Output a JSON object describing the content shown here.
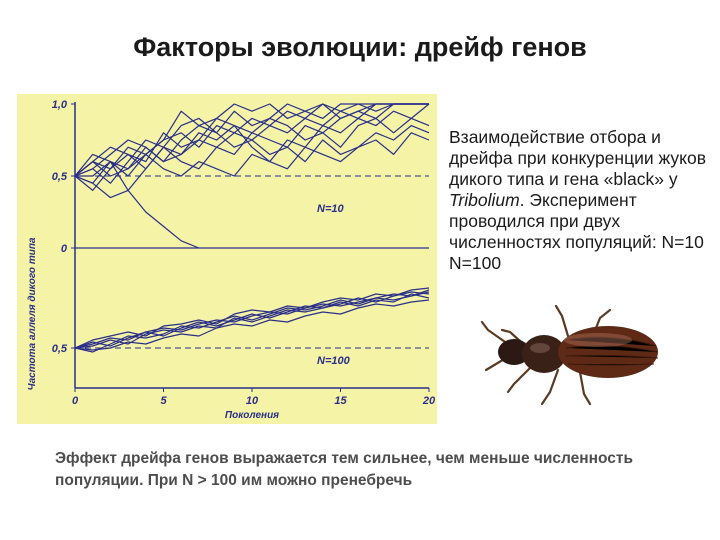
{
  "slide": {
    "title": "Факторы эволюции: дрейф генов",
    "description_before": "Взаимодействие отбора и дрейфа при конкуренции жуков дикого типа и гена «black» у ",
    "description_italic": "Tribolium",
    "description_after": ". Эксперимент проводился при двух численностях популяций: N=10 N=100",
    "footer": "Эффект дрейфа генов выражается тем сильнее, чем меньше численность популяции. При N > 100 им можно пренебречь"
  },
  "colors": {
    "chart_bg": "#f4f3a6",
    "line": "#2a2f8a",
    "beetle": "#4a1f12"
  },
  "chart_data": {
    "type": "line",
    "xlabel": "Поколения",
    "ylabel": "Частота аллеля дикого типа",
    "x_ticks": [
      "0",
      "5",
      "10",
      "15",
      "20"
    ],
    "xlim": [
      0,
      20
    ],
    "panels": [
      {
        "label": "N=10",
        "y_ticks": [
          "1,0",
          "0,5",
          "0"
        ],
        "ylim": [
          0,
          1
        ],
        "reference_line": 0.5,
        "series": [
          {
            "x": [
              0,
              1,
              2,
              3,
              4,
              5,
              6,
              7,
              8,
              9,
              10,
              11,
              12,
              13,
              14,
              15,
              16,
              17,
              18,
              19,
              20
            ],
            "y": [
              0.5,
              0.6,
              0.55,
              0.7,
              0.65,
              0.75,
              0.8,
              0.7,
              0.85,
              0.8,
              0.9,
              0.85,
              0.95,
              0.9,
              1.0,
              0.95,
              1.0,
              1.0,
              1.0,
              1.0,
              1.0
            ]
          },
          {
            "x": [
              0,
              1,
              2,
              3,
              4,
              5,
              6,
              7,
              8,
              9,
              10,
              11,
              12,
              13,
              14,
              15,
              16,
              17,
              18,
              19,
              20
            ],
            "y": [
              0.5,
              0.45,
              0.6,
              0.55,
              0.7,
              0.6,
              0.75,
              0.85,
              0.8,
              0.7,
              0.75,
              0.85,
              0.8,
              0.9,
              0.85,
              0.95,
              0.9,
              1.0,
              1.0,
              1.0,
              1.0
            ]
          },
          {
            "x": [
              0,
              1,
              2,
              3,
              4,
              5,
              6,
              7,
              8,
              9,
              10,
              11,
              12,
              13,
              14,
              15,
              16,
              17,
              18,
              19,
              20
            ],
            "y": [
              0.5,
              0.55,
              0.45,
              0.6,
              0.75,
              0.7,
              0.65,
              0.8,
              0.75,
              0.85,
              0.7,
              0.6,
              0.75,
              0.7,
              0.85,
              0.8,
              0.9,
              0.85,
              0.95,
              0.9,
              1.0
            ]
          },
          {
            "x": [
              0,
              1,
              2,
              3,
              4,
              5,
              6,
              7,
              8,
              9,
              10,
              11,
              12,
              13,
              14,
              15,
              16,
              17,
              18,
              19,
              20
            ],
            "y": [
              0.5,
              0.6,
              0.7,
              0.65,
              0.55,
              0.7,
              0.85,
              0.9,
              0.8,
              0.95,
              0.85,
              0.9,
              1.0,
              0.95,
              0.9,
              1.0,
              1.0,
              0.95,
              1.0,
              1.0,
              1.0
            ]
          },
          {
            "x": [
              0,
              1,
              2,
              3,
              4,
              5,
              6,
              7,
              8,
              9,
              10,
              11,
              12,
              13,
              14,
              15,
              16,
              17,
              18,
              19,
              20
            ],
            "y": [
              0.5,
              0.4,
              0.55,
              0.65,
              0.6,
              0.8,
              0.7,
              0.75,
              0.9,
              0.85,
              0.8,
              0.9,
              0.85,
              0.75,
              0.8,
              0.7,
              0.85,
              0.9,
              0.8,
              0.9,
              0.85
            ]
          },
          {
            "x": [
              0,
              1,
              2,
              3,
              4,
              5,
              6,
              7,
              8,
              9,
              10,
              11,
              12,
              13,
              14,
              15,
              16,
              17,
              18,
              19,
              20
            ],
            "y": [
              0.5,
              0.55,
              0.65,
              0.75,
              0.7,
              0.6,
              0.65,
              0.75,
              0.7,
              0.8,
              0.75,
              0.65,
              0.7,
              0.6,
              0.75,
              0.65,
              0.7,
              0.8,
              0.75,
              0.85,
              0.8
            ]
          },
          {
            "x": [
              0,
              1,
              2,
              3,
              4,
              5,
              6,
              7,
              8,
              9,
              10,
              11,
              12,
              13,
              14,
              15,
              16,
              17,
              18,
              19,
              20
            ],
            "y": [
              0.5,
              0.65,
              0.6,
              0.5,
              0.65,
              0.75,
              0.95,
              0.85,
              0.9,
              1.0,
              0.95,
              1.0,
              0.9,
              0.95,
              1.0,
              0.9,
              0.95,
              1.0,
              1.0,
              1.0,
              1.0
            ]
          },
          {
            "x": [
              0,
              1,
              2,
              3,
              4,
              5,
              6,
              7,
              8,
              9,
              10,
              11,
              12,
              13,
              14,
              15,
              16,
              17,
              18,
              19,
              20
            ],
            "y": [
              0.5,
              0.5,
              0.6,
              0.4,
              0.55,
              0.7,
              0.6,
              0.55,
              0.7,
              0.65,
              0.8,
              0.75,
              0.7,
              0.85,
              0.8,
              0.9,
              0.95,
              0.9,
              1.0,
              1.0,
              1.0
            ]
          },
          {
            "x": [
              0,
              1,
              2,
              3,
              4,
              5,
              6,
              7,
              8,
              9,
              10,
              11,
              12,
              13,
              14,
              15,
              16,
              17,
              18,
              19,
              20
            ],
            "y": [
              0.5,
              0.6,
              0.5,
              0.55,
              0.65,
              0.55,
              0.5,
              0.6,
              0.55,
              0.5,
              0.65,
              0.6,
              0.55,
              0.7,
              0.65,
              0.6,
              0.7,
              0.75,
              0.65,
              0.8,
              0.75
            ]
          },
          {
            "x": [
              0,
              1,
              2,
              3,
              4,
              5,
              6,
              7
            ],
            "y": [
              0.5,
              0.45,
              0.35,
              0.4,
              0.25,
              0.15,
              0.05,
              0.0
            ]
          }
        ]
      },
      {
        "label": "N=100",
        "y_ticks": [
          "0,5"
        ],
        "ylim": [
          0.3,
          1.0
        ],
        "reference_line": 0.5,
        "series": [
          {
            "x": [
              0,
              1,
              2,
              3,
              4,
              5,
              6,
              7,
              8,
              9,
              10,
              11,
              12,
              13,
              14,
              15,
              16,
              17,
              18,
              19,
              20
            ],
            "y": [
              0.5,
              0.52,
              0.55,
              0.54,
              0.58,
              0.6,
              0.59,
              0.62,
              0.64,
              0.63,
              0.66,
              0.68,
              0.67,
              0.7,
              0.72,
              0.71,
              0.73,
              0.75,
              0.74,
              0.76,
              0.78
            ]
          },
          {
            "x": [
              0,
              1,
              2,
              3,
              4,
              5,
              6,
              7,
              8,
              9,
              10,
              11,
              12,
              13,
              14,
              15,
              16,
              17,
              18,
              19,
              20
            ],
            "y": [
              0.5,
              0.48,
              0.52,
              0.56,
              0.55,
              0.57,
              0.61,
              0.6,
              0.63,
              0.66,
              0.64,
              0.67,
              0.7,
              0.69,
              0.71,
              0.74,
              0.72,
              0.75,
              0.77,
              0.76,
              0.79
            ]
          },
          {
            "x": [
              0,
              1,
              2,
              3,
              4,
              5,
              6,
              7,
              8,
              9,
              10,
              11,
              12,
              13,
              14,
              15,
              16,
              17,
              18,
              19,
              20
            ],
            "y": [
              0.5,
              0.53,
              0.51,
              0.55,
              0.58,
              0.56,
              0.6,
              0.63,
              0.61,
              0.64,
              0.67,
              0.65,
              0.68,
              0.71,
              0.7,
              0.72,
              0.75,
              0.73,
              0.76,
              0.78,
              0.77
            ]
          },
          {
            "x": [
              0,
              1,
              2,
              3,
              4,
              5,
              6,
              7,
              8,
              9,
              10,
              11,
              12,
              13,
              14,
              15,
              16,
              17,
              18,
              19,
              20
            ],
            "y": [
              0.5,
              0.51,
              0.54,
              0.52,
              0.57,
              0.59,
              0.58,
              0.61,
              0.6,
              0.65,
              0.63,
              0.66,
              0.69,
              0.68,
              0.7,
              0.73,
              0.71,
              0.74,
              0.73,
              0.77,
              0.75
            ]
          },
          {
            "x": [
              0,
              1,
              2,
              3,
              4,
              5,
              6,
              7,
              8,
              9,
              10,
              11,
              12,
              13,
              14,
              15,
              16,
              17,
              18,
              19,
              20
            ],
            "y": [
              0.5,
              0.49,
              0.5,
              0.53,
              0.52,
              0.55,
              0.57,
              0.56,
              0.6,
              0.62,
              0.61,
              0.64,
              0.63,
              0.66,
              0.68,
              0.67,
              0.7,
              0.72,
              0.71,
              0.73,
              0.74
            ]
          },
          {
            "x": [
              0,
              1,
              2,
              3,
              4,
              5,
              6,
              7,
              8,
              9,
              10,
              11,
              12,
              13,
              14,
              15,
              16,
              17,
              18,
              19,
              20
            ],
            "y": [
              0.5,
              0.54,
              0.56,
              0.58,
              0.56,
              0.61,
              0.62,
              0.64,
              0.62,
              0.67,
              0.69,
              0.68,
              0.71,
              0.7,
              0.73,
              0.75,
              0.74,
              0.77,
              0.76,
              0.79,
              0.8
            ]
          }
        ]
      }
    ]
  }
}
